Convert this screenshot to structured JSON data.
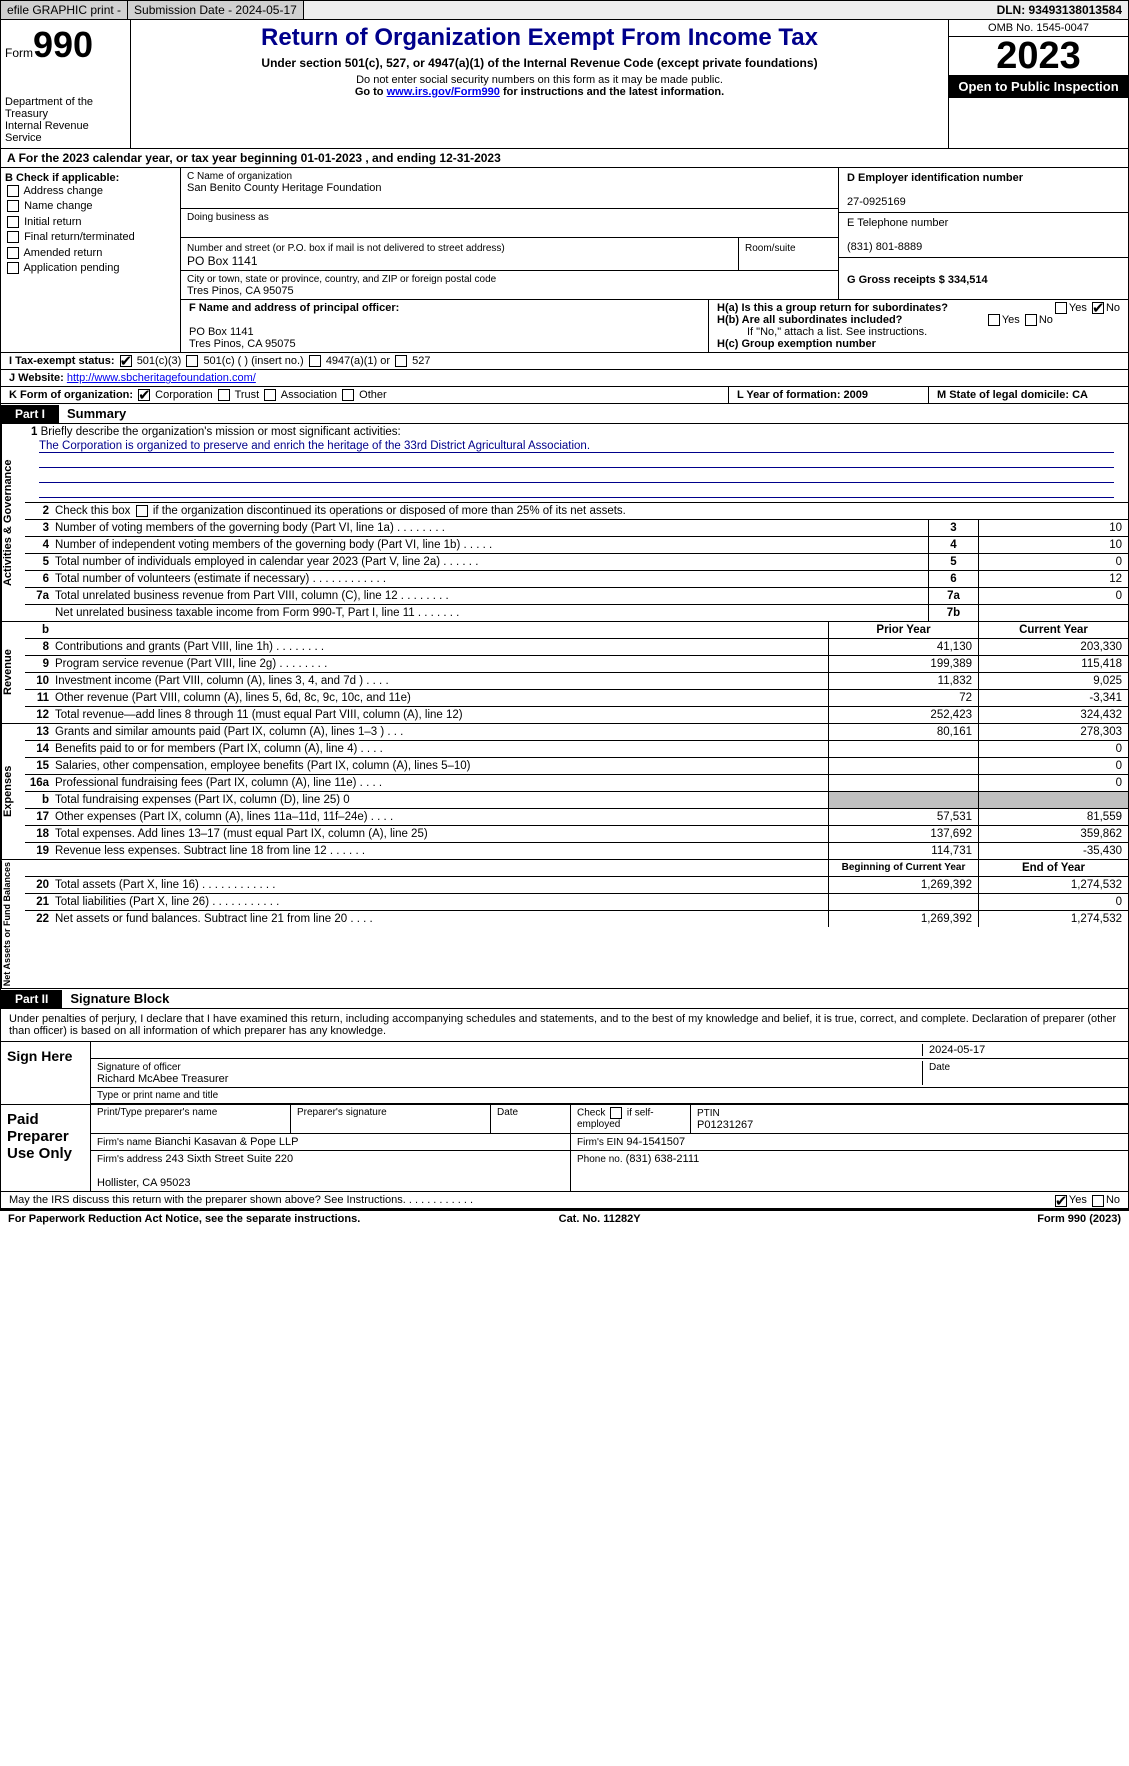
{
  "topbar": {
    "efile": "efile GRAPHIC print -",
    "submission": "Submission Date - 2024-05-17",
    "dln": "DLN: 93493138013584"
  },
  "header": {
    "form_word": "Form",
    "form_num": "990",
    "dept": "Department of the Treasury",
    "irs": "Internal Revenue Service",
    "title": "Return of Organization Exempt From Income Tax",
    "sub": "Under section 501(c), 527, or 4947(a)(1) of the Internal Revenue Code (except private foundations)",
    "ssn": "Do not enter social security numbers on this form as it may be made public.",
    "goto_pre": "Go to ",
    "goto_link": "www.irs.gov/Form990",
    "goto_post": " for instructions and the latest information.",
    "omb": "OMB No. 1545-0047",
    "year": "2023",
    "pub": "Open to Public Inspection"
  },
  "A": "For the 2023 calendar year, or tax year beginning 01-01-2023    , and ending 12-31-2023",
  "B": {
    "hdr": "B Check if applicable:",
    "items": [
      "Address change",
      "Name change",
      "Initial return",
      "Final return/terminated",
      "Amended return",
      "Application pending"
    ]
  },
  "C": {
    "name_lbl": "C Name of organization",
    "name": "San Benito County Heritage Foundation",
    "dba_lbl": "Doing business as",
    "dba": "",
    "addr_lbl": "Number and street (or P.O. box if mail is not delivered to street address)",
    "room_lbl": "Room/suite",
    "addr": "PO Box 1141",
    "city_lbl": "City or town, state or province, country, and ZIP or foreign postal code",
    "city": "Tres Pinos, CA   95075"
  },
  "D": {
    "lbl": "D Employer identification number",
    "val": "27-0925169"
  },
  "E": {
    "lbl": "E Telephone number",
    "val": "(831) 801-8889"
  },
  "G": {
    "lbl": "G Gross receipts $ 334,514"
  },
  "F": {
    "lbl": "F  Name and address of principal officer:",
    "l1": "PO Box 1141",
    "l2": "Tres Pinos, CA   95075"
  },
  "H": {
    "a": "H(a)  Is this a group return for subordinates?",
    "a_yes": "Yes",
    "a_no": "No",
    "b": "H(b)  Are all subordinates included?",
    "b_yes": "Yes",
    "b_no": "No",
    "b2": "If \"No,\" attach a list. See instructions.",
    "c": "H(c)  Group exemption number"
  },
  "I": {
    "lbl": "I   Tax-exempt status:",
    "o1": "501(c)(3)",
    "o2": "501(c) (  ) (insert no.)",
    "o3": "4947(a)(1) or",
    "o4": "527"
  },
  "J": {
    "lbl": "J   Website:",
    "val": "http://www.sbcheritagefoundation.com/"
  },
  "K": {
    "lbl": "K Form of organization:",
    "o1": "Corporation",
    "o2": "Trust",
    "o3": "Association",
    "o4": "Other"
  },
  "L": "L Year of formation: 2009",
  "M": "M State of legal domicile: CA",
  "part1": {
    "tab": "Part I",
    "title": "Summary"
  },
  "s1": {
    "n": "1",
    "t": "Briefly describe the organization's mission or most significant activities:",
    "mission": "The Corporation is organized to preserve and enrich the heritage of the 33rd District Agricultural Association."
  },
  "s2": {
    "n": "2",
    "t": "Check this box        if the organization discontinued its operations or disposed of more than 25% of its net assets."
  },
  "gov": [
    {
      "n": "3",
      "t": "Number of voting members of the governing body (Part VI, line 1a)   .    .    .    .    .    .    .    .",
      "c": "3",
      "v": "10"
    },
    {
      "n": "4",
      "t": "Number of independent voting members of the governing body (Part VI, line 1b)   .    .    .    .    .",
      "c": "4",
      "v": "10"
    },
    {
      "n": "5",
      "t": "Total number of individuals employed in calendar year 2023 (Part V, line 2a)   .    .    .    .    .    .",
      "c": "5",
      "v": "0"
    },
    {
      "n": "6",
      "t": "Total number of volunteers (estimate if necessary)   .    .    .    .    .    .    .    .    .    .    .    .",
      "c": "6",
      "v": "12"
    },
    {
      "n": "7a",
      "t": "Total unrelated business revenue from Part VIII, column (C), line 12   .    .    .    .    .    .    .    .",
      "c": "7a",
      "v": "0"
    },
    {
      "n": "",
      "t": "Net unrelated business taxable income from Form 990-T, Part I, line 11   .    .    .    .    .    .    .",
      "c": "7b",
      "v": ""
    }
  ],
  "rev_hdr": {
    "prior": "Prior Year",
    "cur": "Current Year"
  },
  "rev": [
    {
      "n": "8",
      "t": "Contributions and grants (Part VIII, line 1h)   .    .    .    .    .    .    .    .",
      "p": "41,130",
      "c": "203,330"
    },
    {
      "n": "9",
      "t": "Program service revenue (Part VIII, line 2g)   .    .    .    .    .    .    .    .",
      "p": "199,389",
      "c": "115,418"
    },
    {
      "n": "10",
      "t": "Investment income (Part VIII, column (A), lines 3, 4, and 7d )   .    .    .    .",
      "p": "11,832",
      "c": "9,025"
    },
    {
      "n": "11",
      "t": "Other revenue (Part VIII, column (A), lines 5, 6d, 8c, 9c, 10c, and 11e)",
      "p": "72",
      "c": "-3,341"
    },
    {
      "n": "12",
      "t": "Total revenue—add lines 8 through 11 (must equal Part VIII, column (A), line 12)",
      "p": "252,423",
      "c": "324,432"
    }
  ],
  "exp": [
    {
      "n": "13",
      "t": "Grants and similar amounts paid (Part IX, column (A), lines 1–3 )   .    .    .",
      "p": "80,161",
      "c": "278,303"
    },
    {
      "n": "14",
      "t": "Benefits paid to or for members (Part IX, column (A), line 4)   .    .    .    .",
      "p": "",
      "c": "0"
    },
    {
      "n": "15",
      "t": "Salaries, other compensation, employee benefits (Part IX, column (A), lines 5–10)",
      "p": "",
      "c": "0"
    },
    {
      "n": "16a",
      "t": "Professional fundraising fees (Part IX, column (A), line 11e)   .    .    .    .",
      "p": "",
      "c": "0"
    },
    {
      "n": "b",
      "t": "Total fundraising expenses (Part IX, column (D), line 25) 0",
      "p": "shade",
      "c": "shade"
    },
    {
      "n": "17",
      "t": "Other expenses (Part IX, column (A), lines 11a–11d, 11f–24e)   .    .    .    .",
      "p": "57,531",
      "c": "81,559"
    },
    {
      "n": "18",
      "t": "Total expenses. Add lines 13–17 (must equal Part IX, column (A), line 25)",
      "p": "137,692",
      "c": "359,862"
    },
    {
      "n": "19",
      "t": "Revenue less expenses. Subtract line 18 from line 12   .    .    .    .    .    .",
      "p": "114,731",
      "c": "-35,430"
    }
  ],
  "net_hdr": {
    "b": "Beginning of Current Year",
    "e": "End of Year"
  },
  "net": [
    {
      "n": "20",
      "t": "Total assets (Part X, line 16)   .    .    .    .    .    .    .    .    .    .    .    .",
      "p": "1,269,392",
      "c": "1,274,532"
    },
    {
      "n": "21",
      "t": "Total liabilities (Part X, line 26)   .    .    .    .    .    .    .    .    .    .    .",
      "p": "",
      "c": "0"
    },
    {
      "n": "22",
      "t": "Net assets or fund balances. Subtract line 21 from line 20   .    .    .    .",
      "p": "1,269,392",
      "c": "1,274,532"
    }
  ],
  "part2": {
    "tab": "Part II",
    "title": "Signature Block"
  },
  "decl": "Under penalties of perjury, I declare that I have examined this return, including accompanying schedules and statements, and to the best of my knowledge and belief, it is true, correct, and complete. Declaration of preparer (other than officer) is based on all information of which preparer has any knowledge.",
  "sign": {
    "lbl": "Sign Here",
    "sig_lbl": "Signature of officer",
    "date": "2024-05-17",
    "date_lbl": "Date",
    "name": "Richard McAbee  Treasurer",
    "type_lbl": "Type or print name and title"
  },
  "prep": {
    "lbl": "Paid Preparer Use Only",
    "h1": "Print/Type preparer's name",
    "h2": "Preparer's signature",
    "h3": "Date",
    "h4_pre": "Check",
    "h4_post": "if self-employed",
    "h5": "PTIN",
    "ptin": "P01231267",
    "firm_lbl": "Firm's name",
    "firm": "Bianchi Kasavan & Pope LLP",
    "ein_lbl": "Firm's EIN",
    "ein": "94-1541507",
    "addr_lbl": "Firm's address",
    "addr1": "243 Sixth Street Suite 220",
    "addr2": "Hollister, CA   95023",
    "phone_lbl": "Phone no.",
    "phone": "(831) 638-2111"
  },
  "discuss": "May the IRS discuss this return with the preparer shown above? See Instructions.   .    .    .    .    .    .    .    .    .    .    .",
  "discuss_yes": "Yes",
  "discuss_no": "No",
  "footer": {
    "l": "For Paperwork Reduction Act Notice, see the separate instructions.",
    "m": "Cat. No. 11282Y",
    "r": "Form 990 (2023)"
  },
  "vlabels": {
    "gov": "Activities & Governance",
    "rev": "Revenue",
    "exp": "Expenses",
    "net": "Net Assets or Fund Balances"
  },
  "colors": {
    "title": "#00008b",
    "link": "#0000ee"
  }
}
